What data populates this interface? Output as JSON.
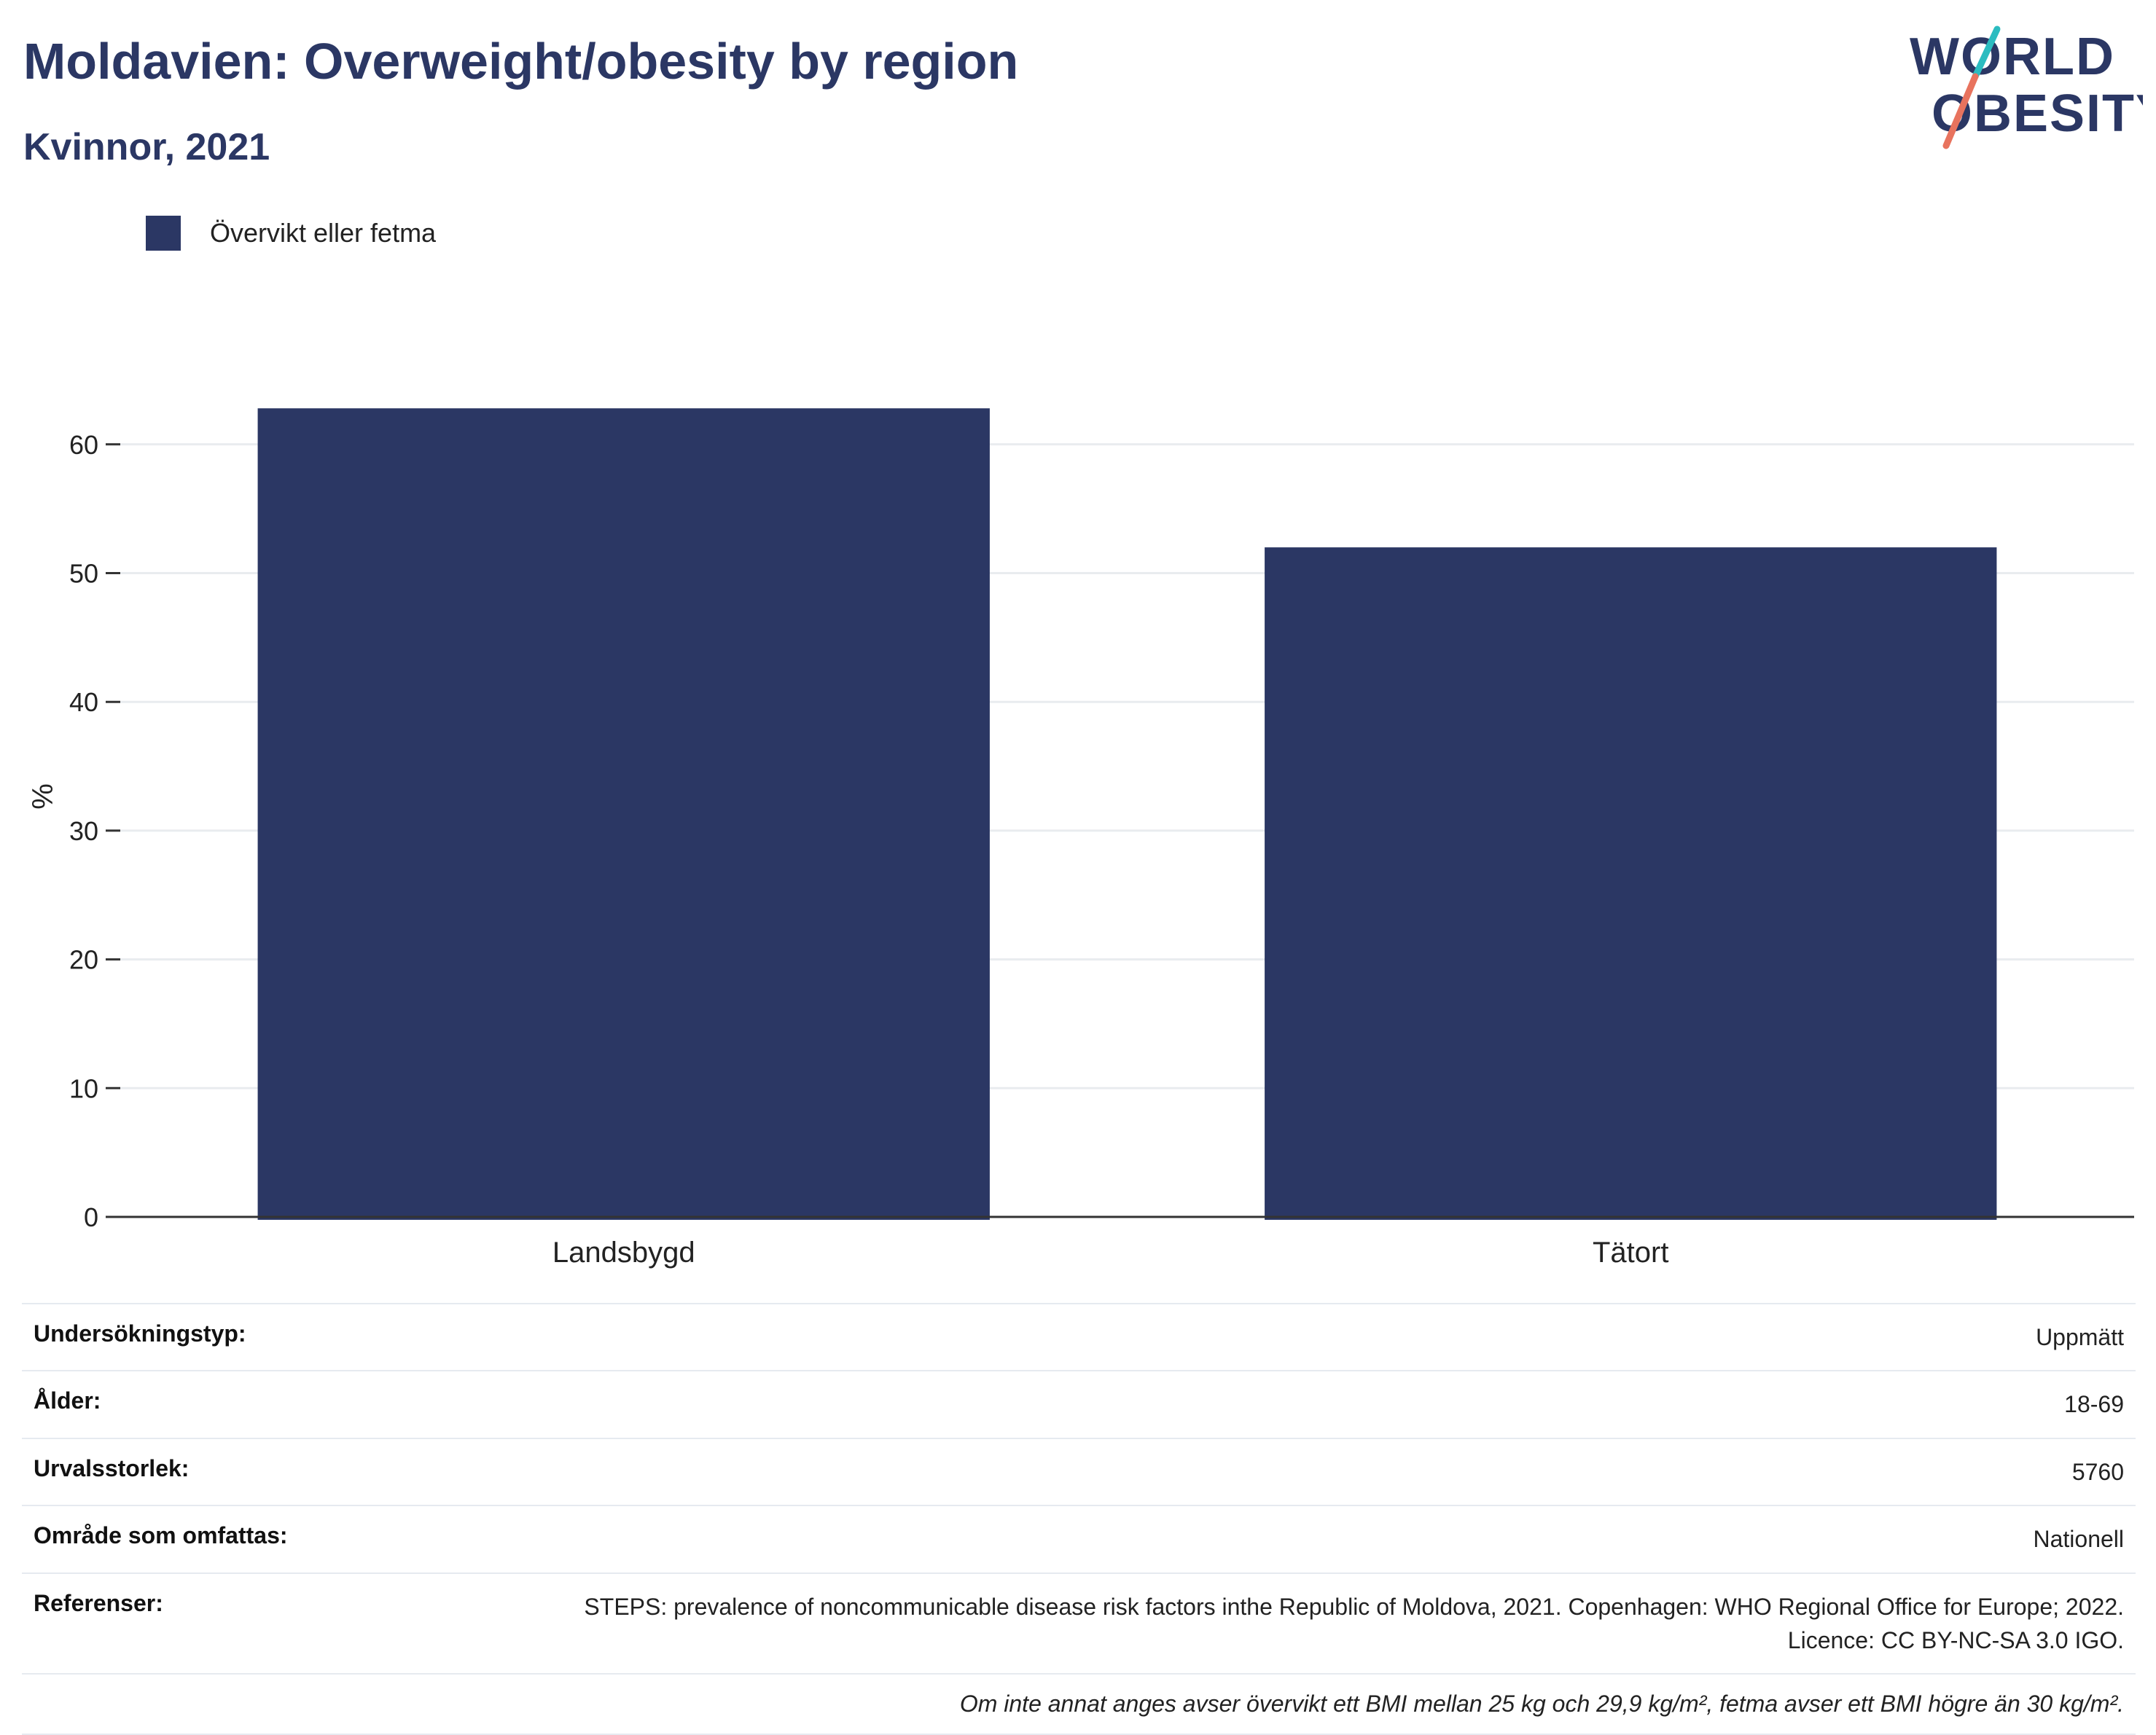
{
  "header": {
    "title": "Moldavien: Overweight/obesity by region",
    "subtitle": "Kvinnor, 2021"
  },
  "logo": {
    "line1": "WORLD",
    "line2": "OBESITY",
    "colors": {
      "text": "#2b3764",
      "slash_top": "#2bbcc0",
      "slash_bottom": "#e8735e"
    }
  },
  "legend": {
    "label": "Övervikt eller fetma",
    "color": "#2b3764"
  },
  "chart_data": {
    "type": "bar",
    "categories": [
      "Landsbygd",
      "Tätort"
    ],
    "series": [
      {
        "name": "Övervikt eller fetma",
        "values": [
          62.8,
          52.0
        ],
        "color": "#2b3764"
      }
    ],
    "ylabel": "%",
    "xlabel": "",
    "ylim": [
      0,
      67
    ],
    "yticks": [
      0,
      10,
      20,
      30,
      40,
      50,
      60
    ],
    "grid": true,
    "legend_position": "top-left"
  },
  "meta": {
    "rows": [
      {
        "key": "Undersökningstyp:",
        "value": "Uppmätt"
      },
      {
        "key": "Ålder:",
        "value": "18-69"
      },
      {
        "key": "Urvalsstorlek:",
        "value": "5760"
      },
      {
        "key": "Område som omfattas:",
        "value": "Nationell"
      },
      {
        "key": "Referenser:",
        "value": "STEPS: prevalence of noncommunicable disease risk factors inthe Republic of Moldova, 2021. Copenhagen: WHO Regional Office for Europe; 2022. Licence: CC BY-NC-SA 3.0 IGO."
      }
    ],
    "note": "Om inte annat anges avser övervikt ett BMI mellan 25 kg och 29,9 kg/m², fetma avser ett BMI högre än 30 kg/m²."
  }
}
